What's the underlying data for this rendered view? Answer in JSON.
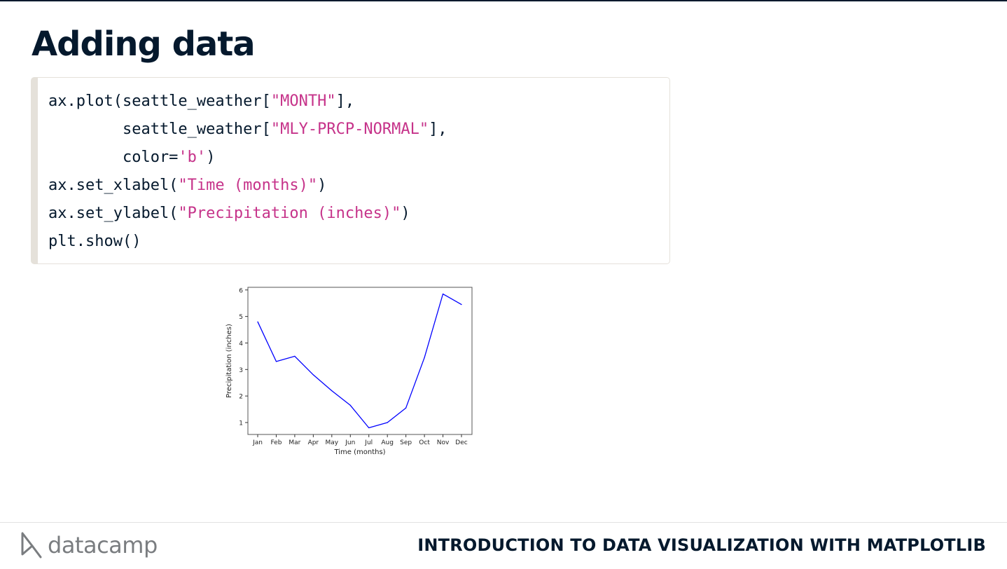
{
  "slide": {
    "title": "Adding data"
  },
  "code": {
    "lines": [
      [
        {
          "t": "ax.plot(seattle_weather["
        },
        {
          "t": "\"MONTH\"",
          "s": 1
        },
        {
          "t": "],"
        }
      ],
      [
        {
          "t": "        seattle_weather["
        },
        {
          "t": "\"MLY-PRCP-NORMAL\"",
          "s": 1
        },
        {
          "t": "],"
        }
      ],
      [
        {
          "t": "        color="
        },
        {
          "t": "'b'",
          "s": 1
        },
        {
          "t": ")"
        }
      ],
      [
        {
          "t": "ax.set_xlabel("
        },
        {
          "t": "\"Time (months)\"",
          "s": 1
        },
        {
          "t": ")"
        }
      ],
      [
        {
          "t": "ax.set_ylabel("
        },
        {
          "t": "\"Precipitation (inches)\"",
          "s": 1
        },
        {
          "t": ")"
        }
      ],
      [
        {
          "t": "plt.show()"
        }
      ]
    ]
  },
  "chart_data": {
    "type": "line",
    "categories": [
      "Jan",
      "Feb",
      "Mar",
      "Apr",
      "May",
      "Jun",
      "Jul",
      "Aug",
      "Sep",
      "Oct",
      "Nov",
      "Dec"
    ],
    "values": [
      4.8,
      3.3,
      3.5,
      2.8,
      2.2,
      1.65,
      0.8,
      1.0,
      1.55,
      3.45,
      5.85,
      5.45
    ],
    "xlabel": "Time (months)",
    "ylabel": "Precipitation (inches)",
    "yticks": [
      1,
      2,
      3,
      4,
      5,
      6
    ],
    "ylim": [
      0.55,
      6.1
    ],
    "line_color": "#0000ff",
    "grid": false,
    "legend": false
  },
  "footer": {
    "logo_text": "datacamp",
    "course_title": "INTRODUCTION TO DATA VISUALIZATION WITH MATPLOTLIB"
  },
  "colors": {
    "title": "#05192d",
    "string": "#c6338a",
    "code_border": "#e5e1da",
    "logo": "#7a7d80"
  }
}
